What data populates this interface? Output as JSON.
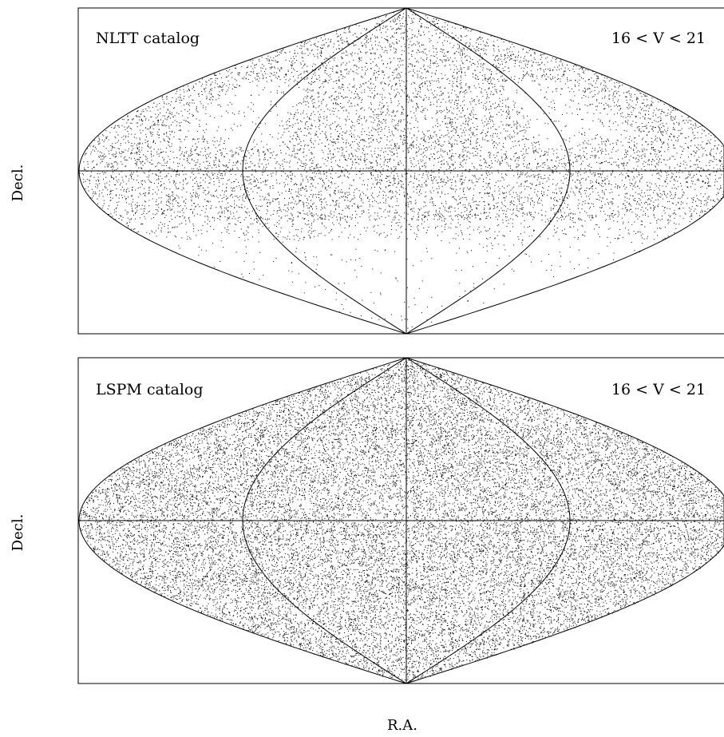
{
  "chart_data": [
    {
      "type": "scatter",
      "projection": "sinusoidal (equal-area) all-sky map",
      "catalog_label": "NLTT catalog",
      "magnitude_label": "16 < V < 21",
      "ylabel": "Decl.",
      "xlabel": "",
      "grid": false,
      "reference_lines": [
        "RA = 0h central meridian",
        "RA = ±6h meridians",
        "Decl. = 0 equator"
      ],
      "point_color": "#000000",
      "point_count": 9000,
      "coverage": "sparse; dense in northern hemisphere and equatorial band, mostly empty below Decl. ≈ -30"
    },
    {
      "type": "scatter",
      "projection": "sinusoidal (equal-area) all-sky map",
      "catalog_label": "LSPM catalog",
      "magnitude_label": "16 < V < 21",
      "ylabel": "Decl.",
      "xlabel": "R.A.",
      "grid": false,
      "reference_lines": [
        "RA = 0h central meridian",
        "RA = ±6h meridians",
        "Decl. = 0 equator"
      ],
      "point_color": "#000000",
      "point_count": 22000,
      "coverage": "dense and nearly uniform over the whole sky"
    }
  ]
}
